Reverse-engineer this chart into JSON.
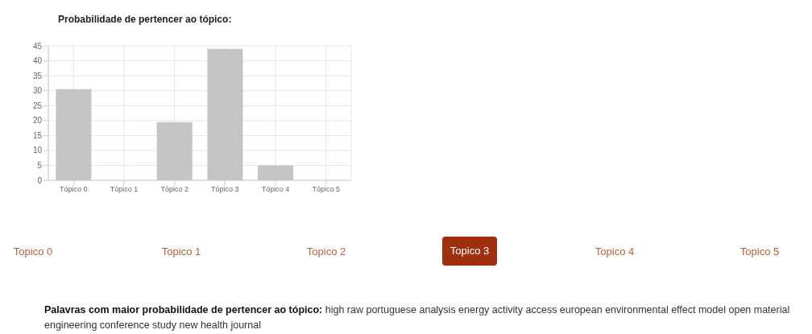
{
  "chart_data": [
    {
      "type": "bar",
      "title": "Probabilidade de pertencer ao tópico:",
      "categories": [
        "Tópico 0",
        "Tópico 1",
        "Tópico 2",
        "Tópico 3",
        "Tópico 4",
        "Tópico 5"
      ],
      "values": [
        30.5,
        0,
        19.5,
        44,
        5,
        0
      ],
      "color": "#c4c4c4",
      "ylim": [
        0,
        45
      ],
      "yticks": [
        0,
        5,
        10,
        15,
        20,
        25,
        30,
        35,
        40,
        45
      ],
      "grid": true
    },
    {
      "type": "other",
      "categories": [
        "Topico 0",
        "Topico 1",
        "Topico 2",
        "Topico 3",
        "Topico 4",
        "Topico 5"
      ],
      "annotations": [
        "Palavras com maior probabilidade de pertencer ao tópico:",
        "high raw portuguese analysis energy activity access european environmental effect model open material engineering conference study new health journal"
      ]
    }
  ]
}
